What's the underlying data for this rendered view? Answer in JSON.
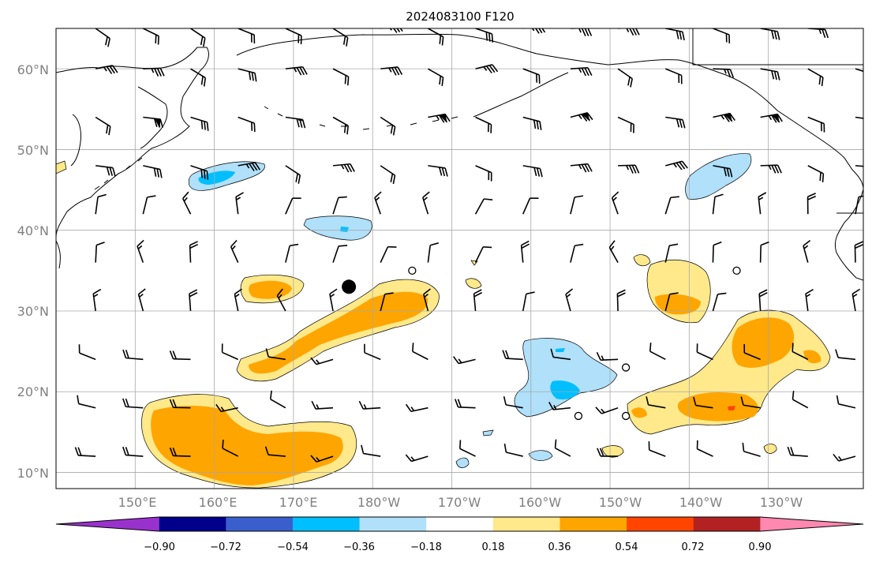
{
  "title": "2024083100 F120",
  "map": {
    "lat_labels": [
      "60°N",
      "50°N",
      "40°N",
      "30°N",
      "20°N",
      "10°N"
    ],
    "lat_values": [
      60,
      50,
      40,
      30,
      20,
      10
    ],
    "lon_labels": [
      "150°E",
      "160°E",
      "170°E",
      "180°W",
      "170°W",
      "160°W",
      "150°W",
      "140°W",
      "130°W"
    ],
    "lon_values_east": [
      150,
      160,
      170,
      180,
      190,
      200,
      210,
      220,
      230
    ],
    "extent": {
      "lon_min_east": 140,
      "lon_max_east": 242,
      "lat_min": 8,
      "lat_max": 65
    },
    "marker": {
      "name": "large black dot",
      "lon_east": 177,
      "lat": 33
    },
    "calm_points": [
      [
        185,
        35
      ],
      [
        226,
        35
      ],
      [
        212,
        23
      ],
      [
        206,
        17
      ],
      [
        212,
        17
      ]
    ]
  },
  "colorbar": {
    "levels": [
      "−0.90",
      "−0.72",
      "−0.54",
      "−0.36",
      "−0.18",
      "0.18",
      "0.36",
      "0.54",
      "0.72",
      "0.90"
    ],
    "colors": [
      "#9932cc",
      "#00008b",
      "#3a5fcd",
      "#00bfff",
      "#b0e0fa",
      "#ffffff",
      "#ffe98a",
      "#ffa500",
      "#ff4500",
      "#b22222",
      "#ff88b0"
    ]
  }
}
